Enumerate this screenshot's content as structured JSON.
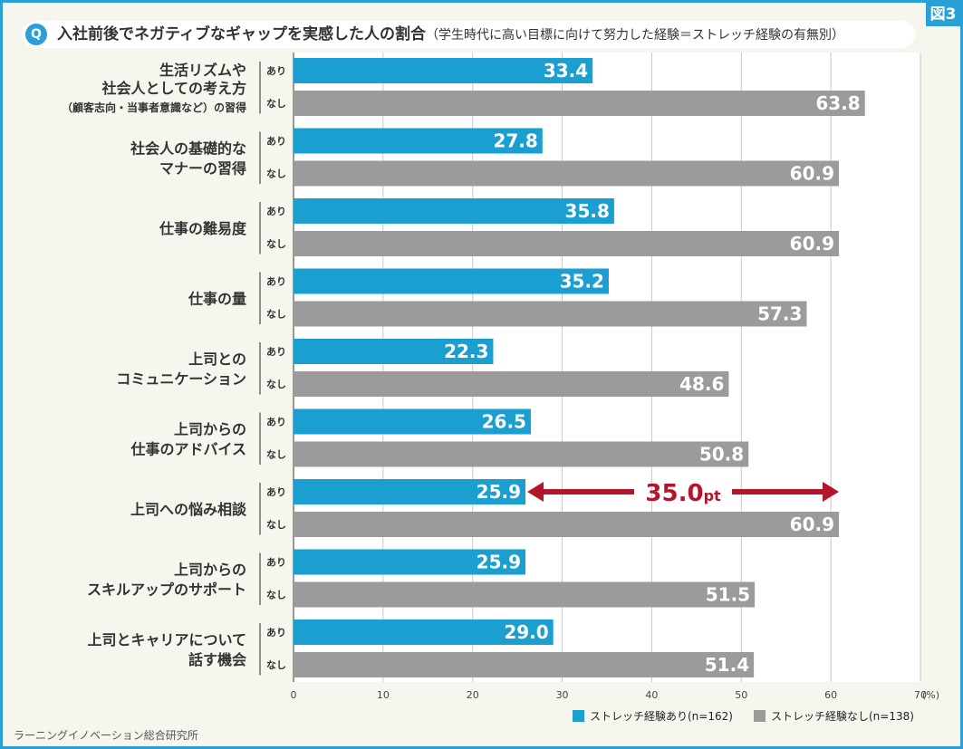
{
  "figure_tag": "図3",
  "question": {
    "badge": "Q",
    "title": "入社前後でネガティブなギャップを実感した人の割合",
    "subtitle": "（学生時代に高い目標に向けて努力した経験＝ストレッチ経験の有無別）"
  },
  "source": "ラーニングイノベーション総合研究所",
  "colors": {
    "ari": "#1b9fd1",
    "nashi": "#9b9b9b",
    "accent": "#b3152a",
    "frame": "#2aa0d6"
  },
  "chart_data": {
    "type": "bar",
    "orientation": "horizontal",
    "title": "入社前後でネガティブなギャップを実感した人の割合",
    "xlim": [
      0,
      70
    ],
    "ticks": [
      0,
      10,
      20,
      30,
      40,
      50,
      60,
      70
    ],
    "unit_label": "(%)",
    "group_labels": [
      "あり",
      "なし"
    ],
    "categories": [
      [
        "生活リズムや",
        "社会人としての考え方",
        "（顧客志向・当事者意識など）の習得"
      ],
      [
        "社会人の基礎的な",
        "マナーの習得"
      ],
      [
        "仕事の難易度"
      ],
      [
        "仕事の量"
      ],
      [
        "上司との",
        "コミュニケーション"
      ],
      [
        "上司からの",
        "仕事のアドバイス"
      ],
      [
        "上司への悩み相談"
      ],
      [
        "上司からの",
        "スキルアップのサポート"
      ],
      [
        "上司とキャリアについて",
        "話す機会"
      ]
    ],
    "series": [
      {
        "name": "ストレッチ経験あり(n=162)",
        "values": [
          33.4,
          27.8,
          35.8,
          35.2,
          22.3,
          26.5,
          25.9,
          25.9,
          29.0
        ]
      },
      {
        "name": "ストレッチ経験なし(n=138)",
        "values": [
          63.8,
          60.9,
          60.9,
          57.3,
          48.6,
          50.8,
          60.9,
          51.5,
          51.4
        ]
      }
    ],
    "value_labels": [
      [
        "33.4",
        "27.8",
        "35.8",
        "35.2",
        "22.3",
        "26.5",
        "25.9",
        "25.9",
        "29.0"
      ],
      [
        "63.8",
        "60.9",
        "60.9",
        "57.3",
        "48.6",
        "50.8",
        "60.9",
        "51.5",
        "51.4"
      ]
    ],
    "annotation": {
      "category_index": 6,
      "number": "35.0",
      "unit": "pt"
    }
  }
}
